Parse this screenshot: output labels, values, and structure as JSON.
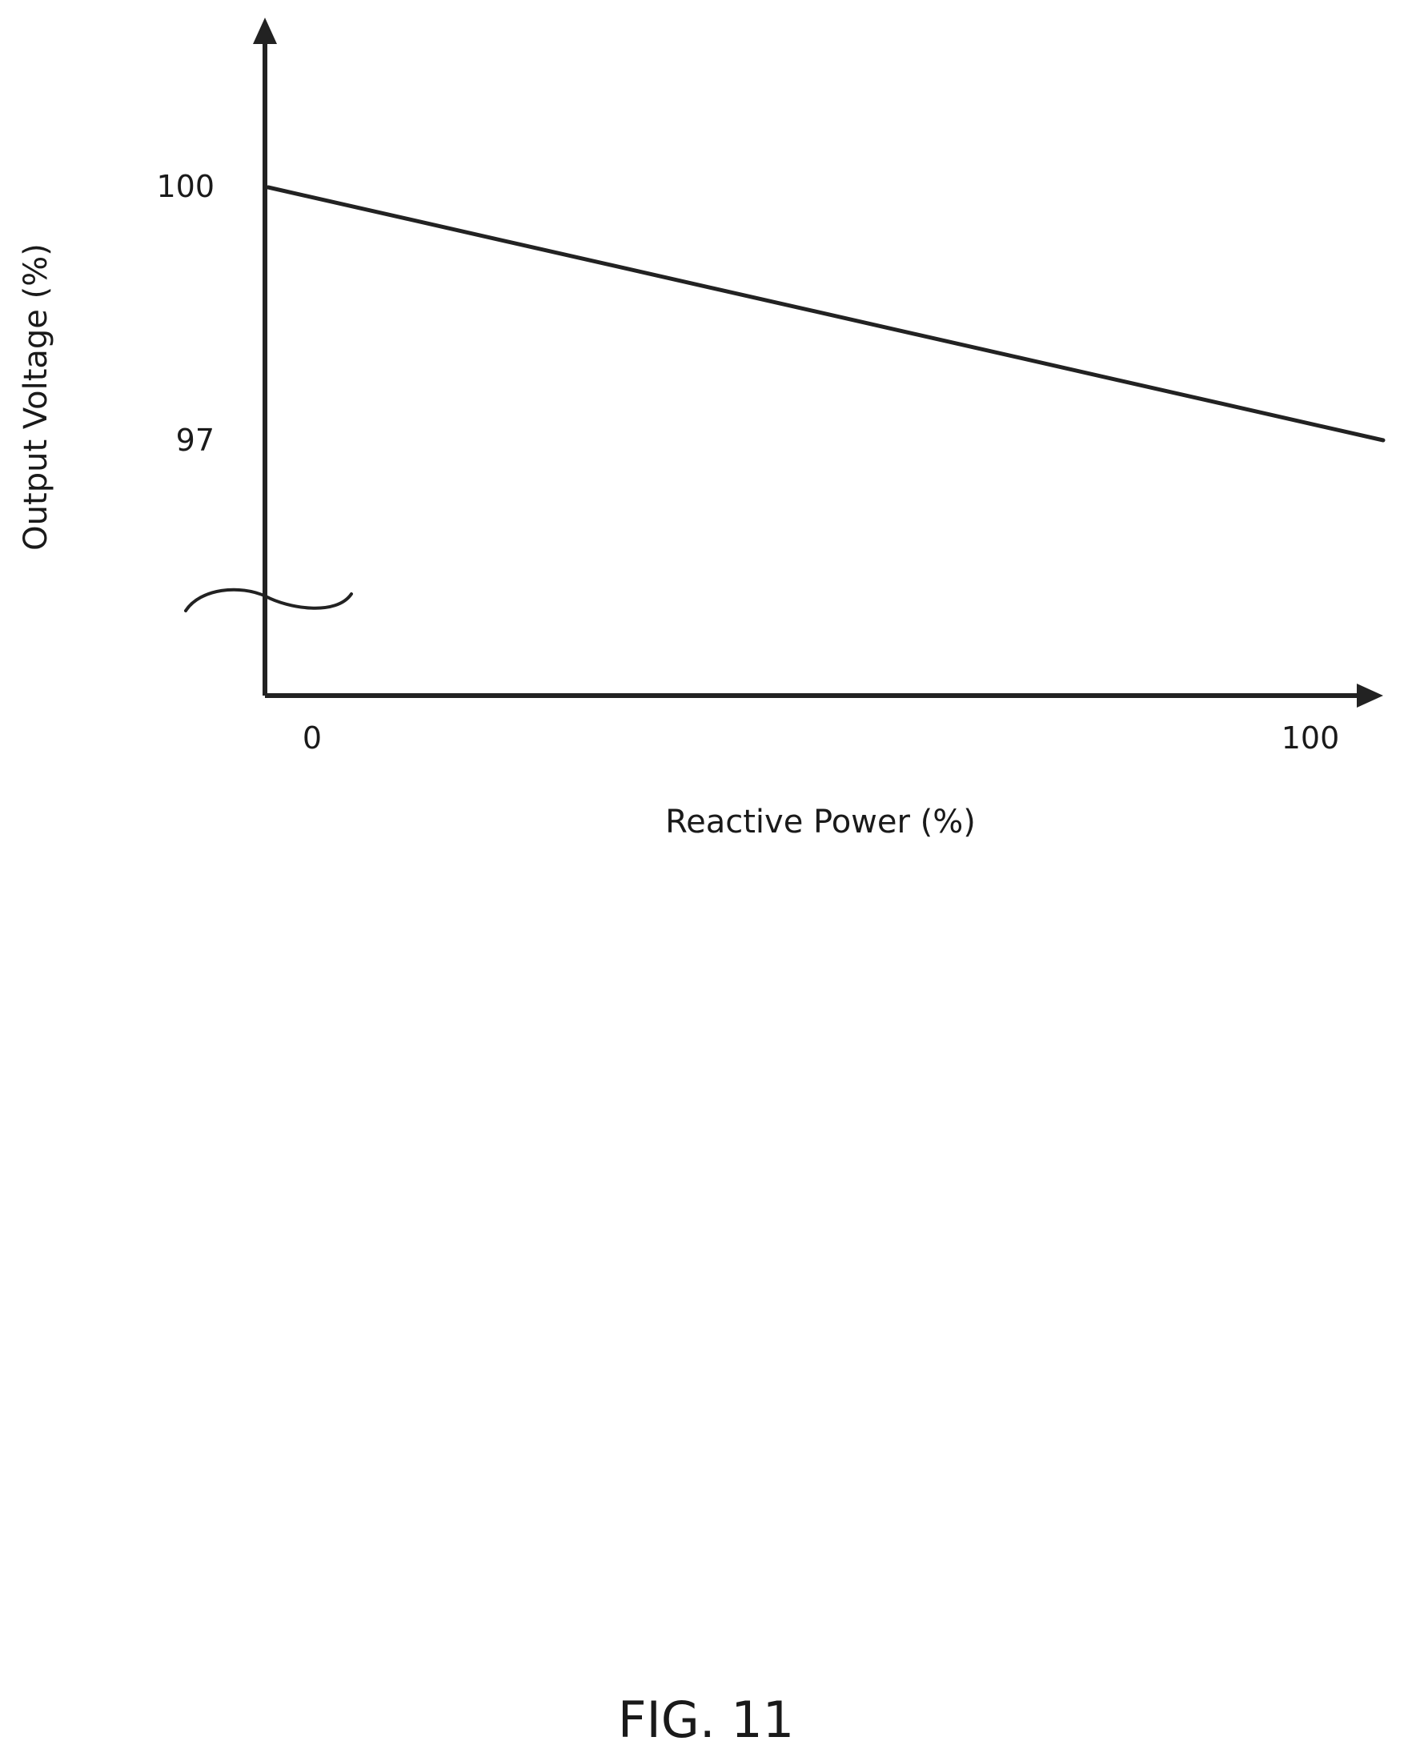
{
  "figure_label": "FIG. 11",
  "chart_data": {
    "type": "line",
    "title": "",
    "xlabel": "Reactive Power (%)",
    "ylabel": "Output Voltage (%)",
    "x_ticks": [
      "0",
      "100"
    ],
    "y_ticks": [
      "100",
      "97"
    ],
    "xlim": [
      0,
      100
    ],
    "y_axis_break": true,
    "series": [
      {
        "x": [
          0,
          100
        ],
        "y": [
          100,
          97
        ]
      }
    ],
    "grid": false,
    "legend": "none"
  }
}
